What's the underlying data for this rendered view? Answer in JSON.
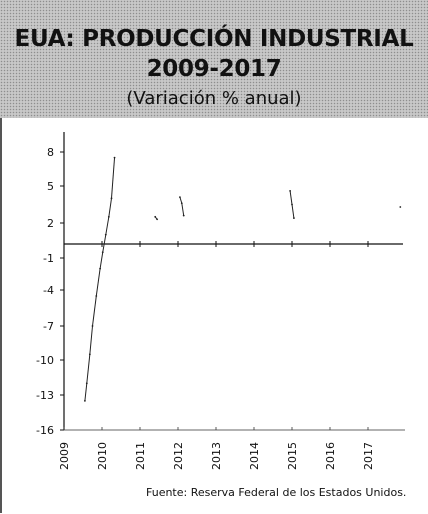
{
  "chart_data": {
    "type": "line",
    "title_line1": "EUA: PRODUCCIÓN INDUSTRIAL",
    "title_line2": "2009-2017",
    "subtitle": "(Variación % anual)",
    "source": "Fuente:  Reserva Federal de los Estados Unidos.",
    "xlabel": "",
    "ylabel": "",
    "x_ticks": [
      "2009",
      "2010",
      "2011",
      "2012",
      "2013",
      "2014",
      "2015",
      "2016",
      "2017"
    ],
    "y_ticks": [
      "8",
      "5",
      "2",
      "-1",
      "-4",
      "-7",
      "-10",
      "-13",
      "-16"
    ],
    "y_tick_values": [
      8,
      5,
      2,
      -1,
      -4,
      -7,
      -10,
      -13,
      -16
    ],
    "xlim": [
      2009,
      2018
    ],
    "ylim": [
      -16,
      9
    ],
    "grid": false,
    "series": [
      {
        "color": "#222222",
        "x": [
          2009.55,
          2009.6,
          2009.68,
          2009.75,
          2009.85,
          2009.95,
          2010.02,
          2010.1,
          2010.18,
          2010.25,
          2010.33,
          2011.4,
          2011.45,
          2012.05,
          2012.1,
          2012.15,
          2014.95,
          2015.0,
          2015.05,
          2017.85
        ],
        "y": [
          -13.5,
          -12,
          -9.5,
          -7,
          -4.5,
          -2,
          -0.5,
          1,
          2.5,
          4.0,
          7.5,
          2.5,
          2.3,
          4.1,
          3.6,
          2.6,
          4.6,
          3.5,
          2.4,
          3.3
        ]
      }
    ]
  }
}
